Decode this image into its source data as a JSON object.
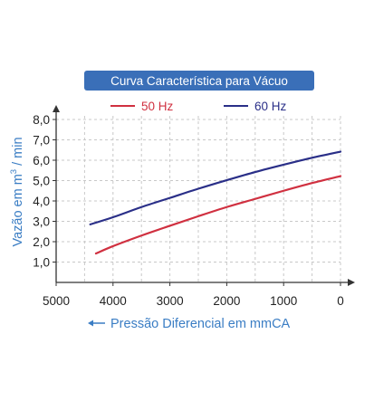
{
  "chart_data": {
    "type": "line",
    "title": "Curva Característica para Vácuo",
    "xlabel": "Pressão Diferencial em mmCA",
    "ylabel_main": "Vazão em m",
    "ylabel_sup": "3",
    "ylabel_tail": " / min",
    "x_reversed": true,
    "xlim": [
      5000,
      0
    ],
    "ylim": [
      0,
      8
    ],
    "xticks": [
      5000,
      4000,
      3000,
      2000,
      1000,
      0
    ],
    "xtick_labels": [
      "5000",
      "4000",
      "3000",
      "2000",
      "1000",
      "0"
    ],
    "yticks": [
      1,
      2,
      3,
      4,
      5,
      6,
      7,
      8
    ],
    "ytick_labels": [
      "1,0",
      "2,0",
      "3,0",
      "4,0",
      "5,0",
      "6,0",
      "7,0",
      "8,0"
    ],
    "grid": "dashed",
    "legend_position": "top",
    "series": [
      {
        "name": "50 Hz",
        "color": "#d03040",
        "x": [
          4300,
          4000,
          3500,
          3000,
          2500,
          2000,
          1500,
          1000,
          500,
          0
        ],
        "y": [
          1.42,
          1.78,
          2.3,
          2.78,
          3.25,
          3.7,
          4.1,
          4.5,
          4.88,
          5.22
        ]
      },
      {
        "name": "60 Hz",
        "color": "#2a2f88",
        "x": [
          4400,
          4000,
          3500,
          3000,
          2500,
          2000,
          1500,
          1000,
          500,
          0
        ],
        "y": [
          2.85,
          3.2,
          3.7,
          4.15,
          4.6,
          5.02,
          5.42,
          5.78,
          6.12,
          6.42
        ]
      }
    ],
    "colors": {
      "title_bg": "#3a6fb8",
      "title_text": "#ffffff",
      "axis_label": "#3a7dc4",
      "axis": "#333333",
      "grid": "#c8c8c8"
    }
  }
}
